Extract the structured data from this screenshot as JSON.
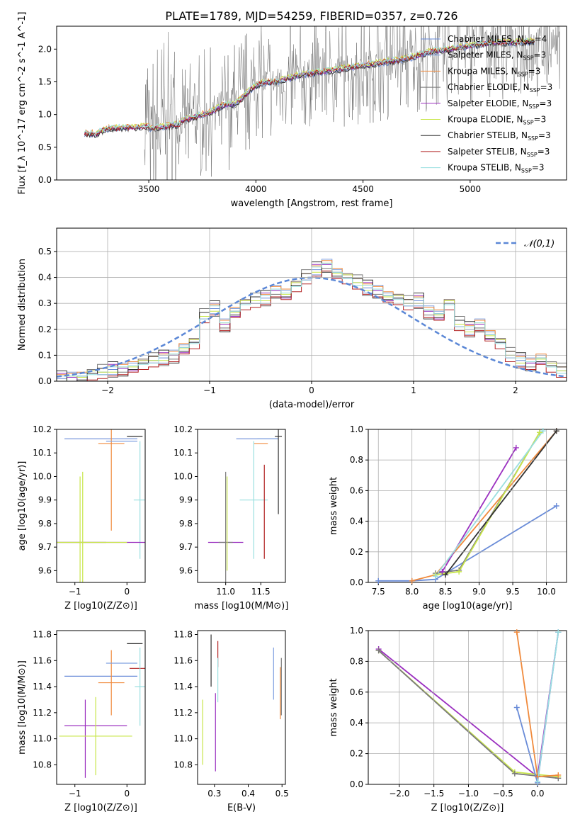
{
  "title": "PLATE=1789, MJD=54259, FIBERID=0357, z=0.726",
  "model_colors": [
    "#6a8cd8",
    "#7fa0e0",
    "#f08a3c",
    "#7a7a7a",
    "#9b30c0",
    "#c8e64a",
    "#333333",
    "#b22222",
    "#9adfe0"
  ],
  "chart_data": [
    {
      "type": "line",
      "id": "spectrum",
      "xlabel": "wavelength [Angstrom, rest frame]",
      "ylabel": "Flux [f_λ 10^-17 erg cm^-2 s^-1 A^-1]",
      "xlim": [
        3070,
        5450
      ],
      "ylim": [
        0,
        2.35
      ],
      "xticks": [
        3500,
        4000,
        4500,
        5000
      ],
      "yticks": [
        0.0,
        0.5,
        1.0,
        1.5,
        2.0
      ],
      "grid": false,
      "legend_position": "top-right",
      "data_spectrum_color": "#6e6e6e",
      "continuum": {
        "x": [
          3200,
          3250,
          3300,
          3400,
          3500,
          3550,
          3600,
          3650,
          3700,
          3750,
          3800,
          3850,
          3900,
          3950,
          4000,
          4050,
          4100,
          4150,
          4200,
          4300,
          4400,
          4500,
          4600,
          4700,
          4800,
          4900,
          5000,
          5100,
          5200,
          5300
        ],
        "y": [
          0.72,
          0.7,
          0.78,
          0.8,
          0.82,
          0.85,
          0.88,
          0.9,
          0.95,
          1.0,
          1.05,
          1.15,
          1.15,
          1.3,
          1.45,
          1.5,
          1.5,
          1.55,
          1.6,
          1.65,
          1.7,
          1.75,
          1.8,
          1.85,
          1.95,
          2.0,
          2.05,
          2.1,
          2.1,
          2.12
        ]
      },
      "series": [
        {
          "name": "Chabrier MILES, N_SSP=4",
          "label_main": "Chabrier MILES, N",
          "label_sub": "SSP",
          "label_tail": "=4",
          "color": "#6a8cd8"
        },
        {
          "name": "Salpeter MILES, N_SSP=3",
          "label_main": "Salpeter MILES, N",
          "label_sub": "SSP",
          "label_tail": "=3",
          "color": "#7fa0e0"
        },
        {
          "name": "Kroupa MILES, N_SSP=3",
          "label_main": "Kroupa MILES, N",
          "label_sub": "SSP",
          "label_tail": "=3",
          "color": "#f08a3c"
        },
        {
          "name": "Chabrier ELODIE, N_SSP=3",
          "label_main": "Chabrier ELODIE, N",
          "label_sub": "SSP",
          "label_tail": "=3",
          "color": "#7a7a7a"
        },
        {
          "name": "Salpeter ELODIE, N_SSP=3",
          "label_main": "Salpeter ELODIE, N",
          "label_sub": "SSP",
          "label_tail": "=3",
          "color": "#9b30c0"
        },
        {
          "name": "Kroupa ELODIE, N_SSP=3",
          "label_main": "Kroupa ELODIE, N",
          "label_sub": "SSP",
          "label_tail": "=3",
          "color": "#c8e64a"
        },
        {
          "name": "Chabrier STELIB, N_SSP=3",
          "label_main": "Chabrier STELIB, N",
          "label_sub": "SSP",
          "label_tail": "=3",
          "color": "#333333"
        },
        {
          "name": "Salpeter STELIB, N_SSP=3",
          "label_main": "Salpeter STELIB, N",
          "label_sub": "SSP",
          "label_tail": "=3",
          "color": "#b22222"
        },
        {
          "name": "Kroupa STELIB, N_SSP=3",
          "label_main": "Kroupa STELIB, N",
          "label_sub": "SSP",
          "label_tail": "=3",
          "color": "#9adfe0"
        }
      ]
    },
    {
      "type": "bar",
      "id": "residuals",
      "xlabel": "(data-model)/error",
      "ylabel": "Normed distribution",
      "xlim": [
        -2.5,
        2.5
      ],
      "ylim": [
        0,
        0.59
      ],
      "xticks": [
        -2,
        -1,
        0,
        1,
        2
      ],
      "yticks": [
        0.0,
        0.1,
        0.2,
        0.3,
        0.4,
        0.5
      ],
      "grid": true,
      "legend_position": "top-right",
      "legend_label": "𝒩(0,1)",
      "bin_width": 0.1,
      "bins_from": -2.5,
      "base_values": [
        0.01,
        0.015,
        0.02,
        0.03,
        0.035,
        0.045,
        0.05,
        0.06,
        0.07,
        0.08,
        0.09,
        0.1,
        0.13,
        0.15,
        0.25,
        0.28,
        0.22,
        0.27,
        0.3,
        0.31,
        0.32,
        0.35,
        0.34,
        0.37,
        0.4,
        0.43,
        0.45,
        0.42,
        0.4,
        0.38,
        0.36,
        0.35,
        0.33,
        0.32,
        0.3,
        0.31,
        0.27,
        0.26,
        0.3,
        0.22,
        0.2,
        0.22,
        0.18,
        0.15,
        0.1,
        0.08,
        0.07,
        0.09,
        0.06,
        0.04
      ]
    },
    {
      "type": "scatter",
      "id": "age-vs-metallicity",
      "xlabel": "Z [log10(Z/Z⊙)]",
      "ylabel": "age [log10(age/yr)]",
      "xlim": [
        -1.35,
        0.35
      ],
      "ylim": [
        9.55,
        10.2
      ],
      "xticks": [
        -1,
        0
      ],
      "yticks": [
        9.6,
        9.7,
        9.8,
        9.9,
        10.0,
        10.1,
        10.2
      ],
      "grid": false,
      "points": [
        {
          "series": 0,
          "x": -0.5,
          "y": 10.16,
          "xerr": 0.7,
          "yerr": 0.0
        },
        {
          "series": 2,
          "x": -0.3,
          "y": 10.14,
          "xerr": 0.25,
          "yerr": 0.37
        },
        {
          "series": 1,
          "x": -0.1,
          "y": 10.15,
          "xerr": 0.3,
          "yerr": 0.0
        },
        {
          "series": 6,
          "x": 0.15,
          "y": 10.17,
          "xerr": 0.15,
          "yerr": 0.0
        },
        {
          "series": 8,
          "x": 0.25,
          "y": 9.9,
          "xerr": 0.12,
          "yerr": 0.25
        },
        {
          "series": 3,
          "x": -0.9,
          "y": 9.72,
          "xerr": 0.5,
          "yerr": 0.0
        },
        {
          "series": 4,
          "x": -0.5,
          "y": 9.72,
          "xerr": 0.9,
          "yerr": 0.0
        },
        {
          "series": 5,
          "x": -0.85,
          "y": 9.72,
          "xerr": 0.85,
          "yerr": 0.3
        },
        {
          "series": 5,
          "x": -0.9,
          "y": 9.72,
          "xerr": 0.0,
          "yerr": 0.28
        }
      ]
    },
    {
      "type": "scatter",
      "id": "age-vs-mass",
      "xlabel": "mass [log10(M/M⊙)]",
      "ylabel": "",
      "xlim": [
        10.6,
        11.85
      ],
      "ylim": [
        9.55,
        10.2
      ],
      "xticks": [
        11.0,
        11.5
      ],
      "yticks": [
        9.6,
        9.7,
        9.8,
        9.9,
        10.0,
        10.1,
        10.2
      ],
      "grid": false,
      "points": [
        {
          "series": 0,
          "x": 11.45,
          "y": 10.16,
          "xerr": 0.3,
          "yerr": 0.0
        },
        {
          "series": 2,
          "x": 11.5,
          "y": 10.14,
          "xerr": 0.1,
          "yerr": 0.0
        },
        {
          "series": 1,
          "x": 11.6,
          "y": 10.16,
          "xerr": 0.15,
          "yerr": 0.0
        },
        {
          "series": 6,
          "x": 11.75,
          "y": 10.17,
          "xerr": 0.05,
          "yerr": 0.33
        },
        {
          "series": 8,
          "x": 11.4,
          "y": 9.9,
          "xerr": 0.2,
          "yerr": 0.25
        },
        {
          "series": 7,
          "x": 11.55,
          "y": 9.85,
          "xerr": 0.0,
          "yerr": 0.2
        },
        {
          "series": 4,
          "x": 11.0,
          "y": 9.72,
          "xerr": 0.25,
          "yerr": 0.0
        },
        {
          "series": 3,
          "x": 11.0,
          "y": 9.72,
          "xerr": 0.1,
          "yerr": 0.3
        },
        {
          "series": 5,
          "x": 11.02,
          "y": 9.8,
          "xerr": 0.0,
          "yerr": 0.2
        }
      ]
    },
    {
      "type": "line",
      "id": "massweight-vs-age",
      "xlabel": "age [log10(age/yr)]",
      "ylabel": "mass weight",
      "xlim": [
        7.35,
        10.3
      ],
      "ylim": [
        0,
        1.0
      ],
      "xticks": [
        7.5,
        8.0,
        8.5,
        9.0,
        9.5,
        10.0
      ],
      "yticks": [
        0.0,
        0.2,
        0.4,
        0.6,
        0.8,
        1.0
      ],
      "grid": true,
      "series": [
        {
          "color": "#6a8cd8",
          "x": [
            7.5,
            8.0,
            8.35,
            10.15
          ],
          "y": [
            0.01,
            0.01,
            0.02,
            0.5
          ]
        },
        {
          "color": "#f08a3c",
          "x": [
            8.0,
            8.35,
            10.15
          ],
          "y": [
            0.01,
            0.05,
            0.99
          ]
        },
        {
          "color": "#7a7a7a",
          "x": [
            8.35,
            8.7,
            9.9
          ],
          "y": [
            0.06,
            0.08,
            0.98
          ]
        },
        {
          "color": "#9b30c0",
          "x": [
            8.45,
            9.55
          ],
          "y": [
            0.07,
            0.88
          ]
        },
        {
          "color": "#c8e64a",
          "x": [
            8.35,
            8.7,
            9.9
          ],
          "y": [
            0.05,
            0.07,
            0.98
          ]
        },
        {
          "color": "#333333",
          "x": [
            8.5,
            10.15
          ],
          "y": [
            0.05,
            0.99
          ]
        },
        {
          "color": "#9adfe0",
          "x": [
            8.35,
            9.95
          ],
          "y": [
            0.04,
            0.99
          ]
        }
      ]
    },
    {
      "type": "scatter",
      "id": "mass-vs-metallicity",
      "xlabel": "Z [log10(Z/Z⊙)]",
      "ylabel": "mass [log10(M/M⊙)]",
      "xlim": [
        -1.35,
        0.35
      ],
      "ylim": [
        10.65,
        11.83
      ],
      "xticks": [
        -1,
        0
      ],
      "yticks": [
        10.8,
        11.0,
        11.2,
        11.4,
        11.6,
        11.8
      ],
      "grid": false,
      "points": [
        {
          "series": 0,
          "x": -0.5,
          "y": 11.48,
          "xerr": 0.7,
          "yerr": 0.0
        },
        {
          "series": 2,
          "x": -0.3,
          "y": 11.43,
          "xerr": 0.25,
          "yerr": 0.25
        },
        {
          "series": 1,
          "x": -0.1,
          "y": 11.58,
          "xerr": 0.3,
          "yerr": 0.0
        },
        {
          "series": 6,
          "x": 0.15,
          "y": 11.73,
          "xerr": 0.15,
          "yerr": 0.0
        },
        {
          "series": 7,
          "x": 0.2,
          "y": 11.54,
          "xerr": 0.15,
          "yerr": 0.0
        },
        {
          "series": 8,
          "x": 0.25,
          "y": 11.4,
          "xerr": 0.1,
          "yerr": 0.3
        },
        {
          "series": 4,
          "x": -0.6,
          "y": 11.1,
          "xerr": 0.6,
          "yerr": 0.0
        },
        {
          "series": 4,
          "x": -0.8,
          "y": 11.0,
          "xerr": 0.0,
          "yerr": 0.3
        },
        {
          "series": 5,
          "x": -0.6,
          "y": 11.02,
          "xerr": 0.7,
          "yerr": 0.3
        }
      ]
    },
    {
      "type": "scatter",
      "id": "mass-vs-ebv",
      "xlabel": "E(B-V)",
      "ylabel": "",
      "xlim": [
        0.25,
        0.51
      ],
      "ylim": [
        10.65,
        11.83
      ],
      "xticks": [
        0.3,
        0.4,
        0.5
      ],
      "yticks": [
        10.8,
        11.0,
        11.2,
        11.4,
        11.6,
        11.8
      ],
      "grid": false,
      "points": [
        {
          "series": 6,
          "x": 0.29,
          "y": 11.6,
          "xerr": 0.0,
          "yerr": 0.2
        },
        {
          "series": 7,
          "x": 0.31,
          "y": 11.65,
          "xerr": 0.0,
          "yerr": 0.1
        },
        {
          "series": 8,
          "x": 0.31,
          "y": 11.45,
          "xerr": 0.0,
          "yerr": 0.17
        },
        {
          "series": 4,
          "x": 0.303,
          "y": 11.05,
          "xerr": 0.0,
          "yerr": 0.3
        },
        {
          "series": 5,
          "x": 0.265,
          "y": 11.05,
          "xerr": 0.0,
          "yerr": 0.25
        },
        {
          "series": 1,
          "x": 0.475,
          "y": 11.5,
          "xerr": 0.0,
          "yerr": 0.2
        },
        {
          "series": 2,
          "x": 0.495,
          "y": 11.35,
          "xerr": 0.0,
          "yerr": 0.2
        },
        {
          "series": 3,
          "x": 0.498,
          "y": 11.4,
          "xerr": 0.0,
          "yerr": 0.22
        }
      ]
    },
    {
      "type": "line",
      "id": "massweight-vs-metallicity",
      "xlabel": "Z [log10(Z/Z⊙)]",
      "ylabel": "mass weight",
      "xlim": [
        -2.45,
        0.42
      ],
      "ylim": [
        0,
        1.0
      ],
      "xticks": [
        -2.0,
        -1.5,
        -1.0,
        -0.5,
        0.0
      ],
      "yticks": [
        0.0,
        0.2,
        0.4,
        0.6,
        0.8,
        1.0
      ],
      "grid": true,
      "series": [
        {
          "color": "#9b30c0",
          "x": [
            -2.3,
            -0.0,
            0.3
          ],
          "y": [
            0.88,
            0.05,
            0.99
          ]
        },
        {
          "color": "#c8e64a",
          "x": [
            -2.3,
            -0.33,
            0.3
          ],
          "y": [
            0.87,
            0.08,
            0.05
          ]
        },
        {
          "color": "#7a7a7a",
          "x": [
            -2.3,
            -0.33,
            0.3
          ],
          "y": [
            0.87,
            0.07,
            0.04
          ]
        },
        {
          "color": "#f08a3c",
          "x": [
            -0.3,
            0.0,
            0.3
          ],
          "y": [
            0.99,
            0.05,
            0.06
          ]
        },
        {
          "color": "#6a8cd8",
          "x": [
            -0.3,
            0.0,
            0.3
          ],
          "y": [
            0.5,
            0.01,
            0.99
          ]
        },
        {
          "color": "#9adfe0",
          "x": [
            0.0,
            0.3
          ],
          "y": [
            0.02,
            0.99
          ]
        }
      ]
    }
  ]
}
